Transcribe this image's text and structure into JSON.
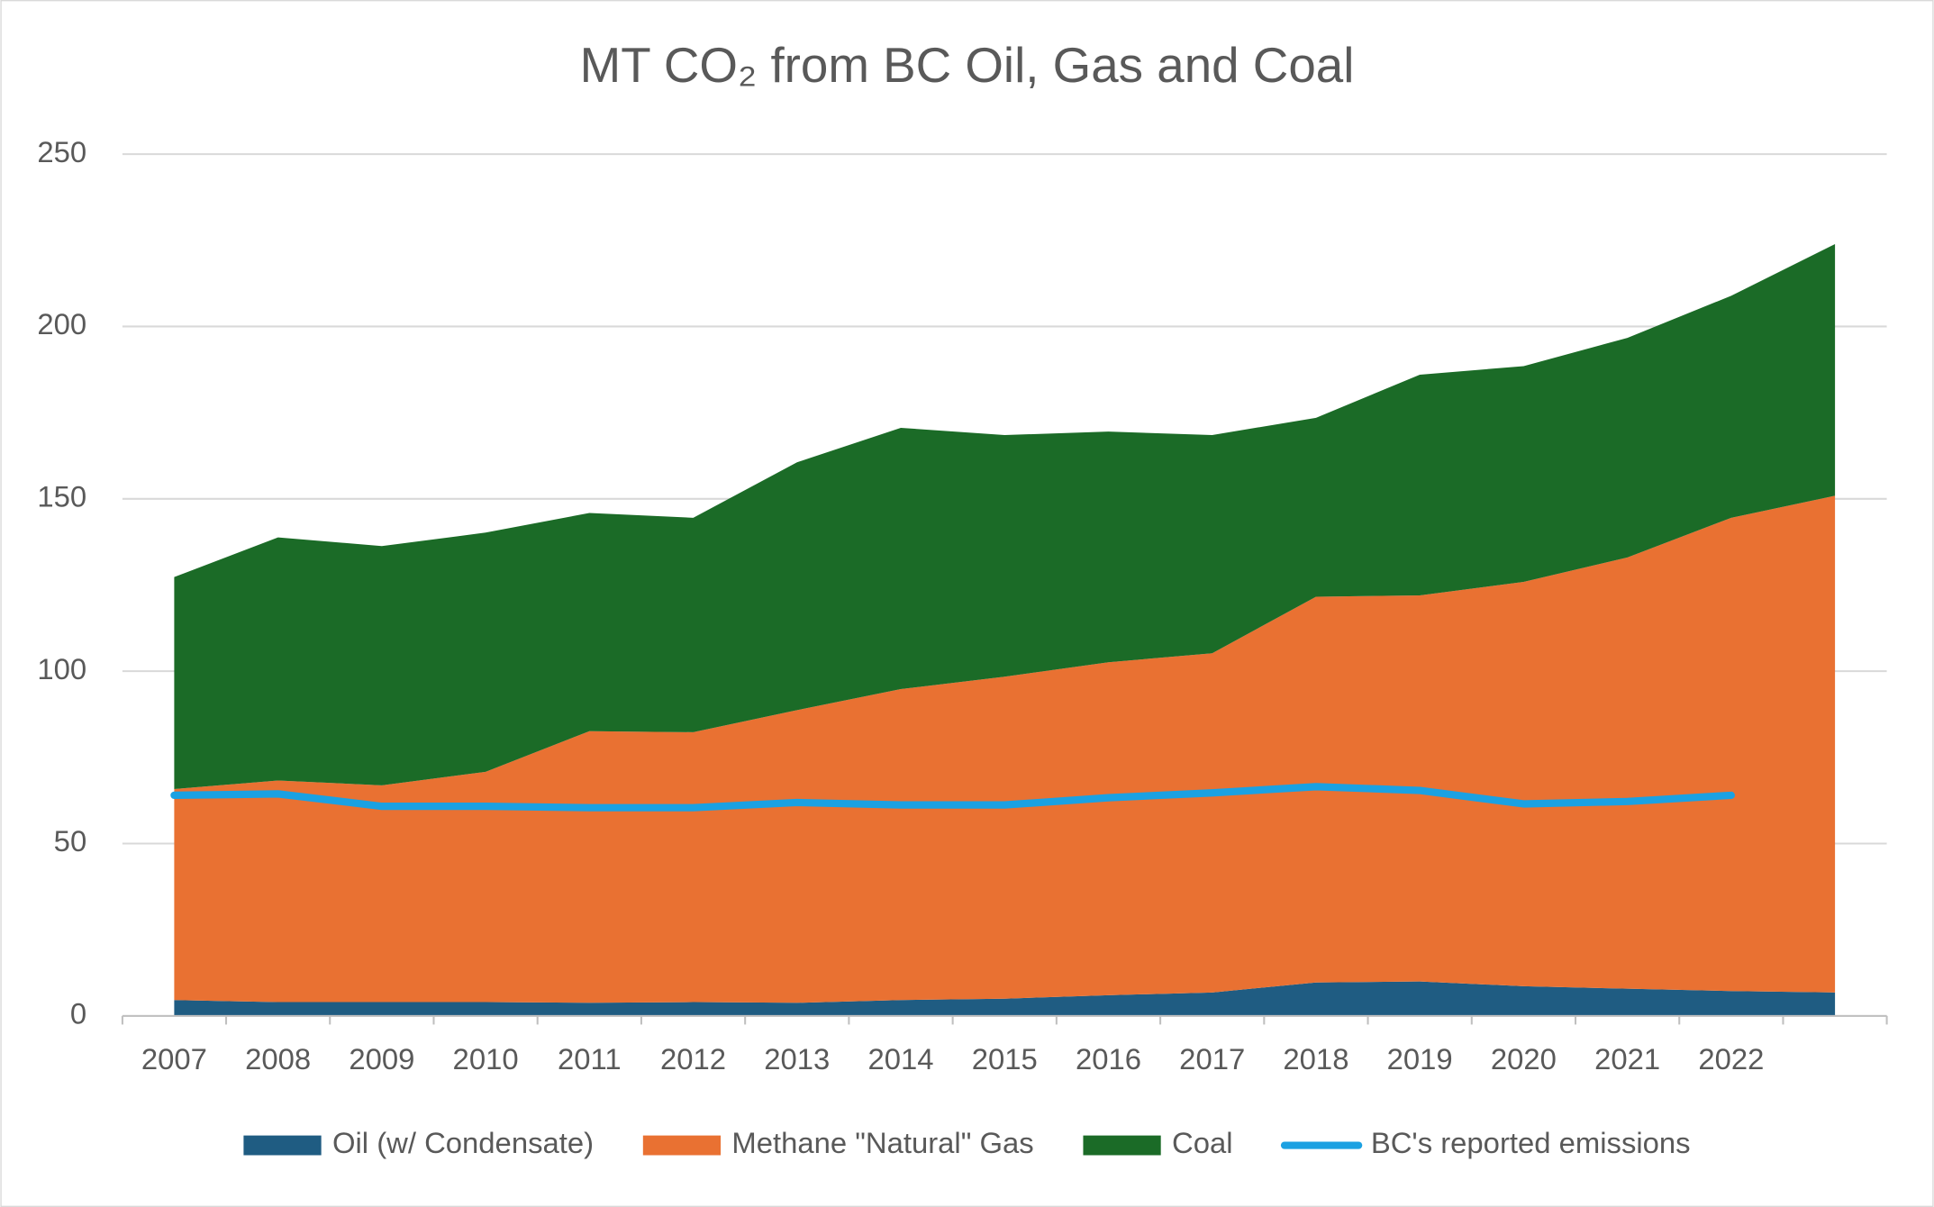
{
  "chart_data": {
    "type": "stacked-area",
    "title": "MT CO₂ from BC Oil, Gas and Coal",
    "categories": [
      "2007",
      "2008",
      "2009",
      "2010",
      "2011",
      "2012",
      "2013",
      "2014",
      "2015",
      "2016",
      "2017",
      "2018",
      "2019",
      "2020",
      "2021",
      "2022",
      null
    ],
    "series": [
      {
        "name": "Oil (w/ Condensate)",
        "color": "#1f5c82",
        "values": [
          4.6,
          4.0,
          4.0,
          4.0,
          3.8,
          4.0,
          3.8,
          4.6,
          5.0,
          6.0,
          6.8,
          9.7,
          10.0,
          8.6,
          7.9,
          7.2,
          6.8
        ]
      },
      {
        "name": "Methane \"Natural\" Gas",
        "color": "#e97132",
        "values": [
          61.2,
          64.3,
          62.9,
          66.8,
          78.8,
          78.3,
          84.9,
          90.2,
          93.4,
          96.6,
          98.4,
          111.9,
          112.0,
          117.3,
          125.1,
          137.3,
          144.1
        ]
      },
      {
        "name": "Coal",
        "color": "#1b6b27",
        "values": [
          61.5,
          70.5,
          69.4,
          69.4,
          63.3,
          62.2,
          71.9,
          75.8,
          70.1,
          66.9,
          63.3,
          51.9,
          64.0,
          62.6,
          63.7,
          64.4,
          73.0
        ]
      },
      {
        "name": "BC's reported emissions",
        "color": "#1ba1e2",
        "type": "line",
        "values": [
          64.0,
          64.4,
          60.8,
          60.8,
          60.4,
          60.4,
          61.9,
          61.2,
          61.2,
          63.3,
          64.7,
          66.5,
          65.4,
          61.5,
          62.2,
          64.0,
          null
        ]
      }
    ],
    "ylim": [
      0,
      250
    ],
    "yticks": [
      0,
      50,
      100,
      150,
      200,
      250
    ],
    "grid": true,
    "legend": "bottom"
  }
}
